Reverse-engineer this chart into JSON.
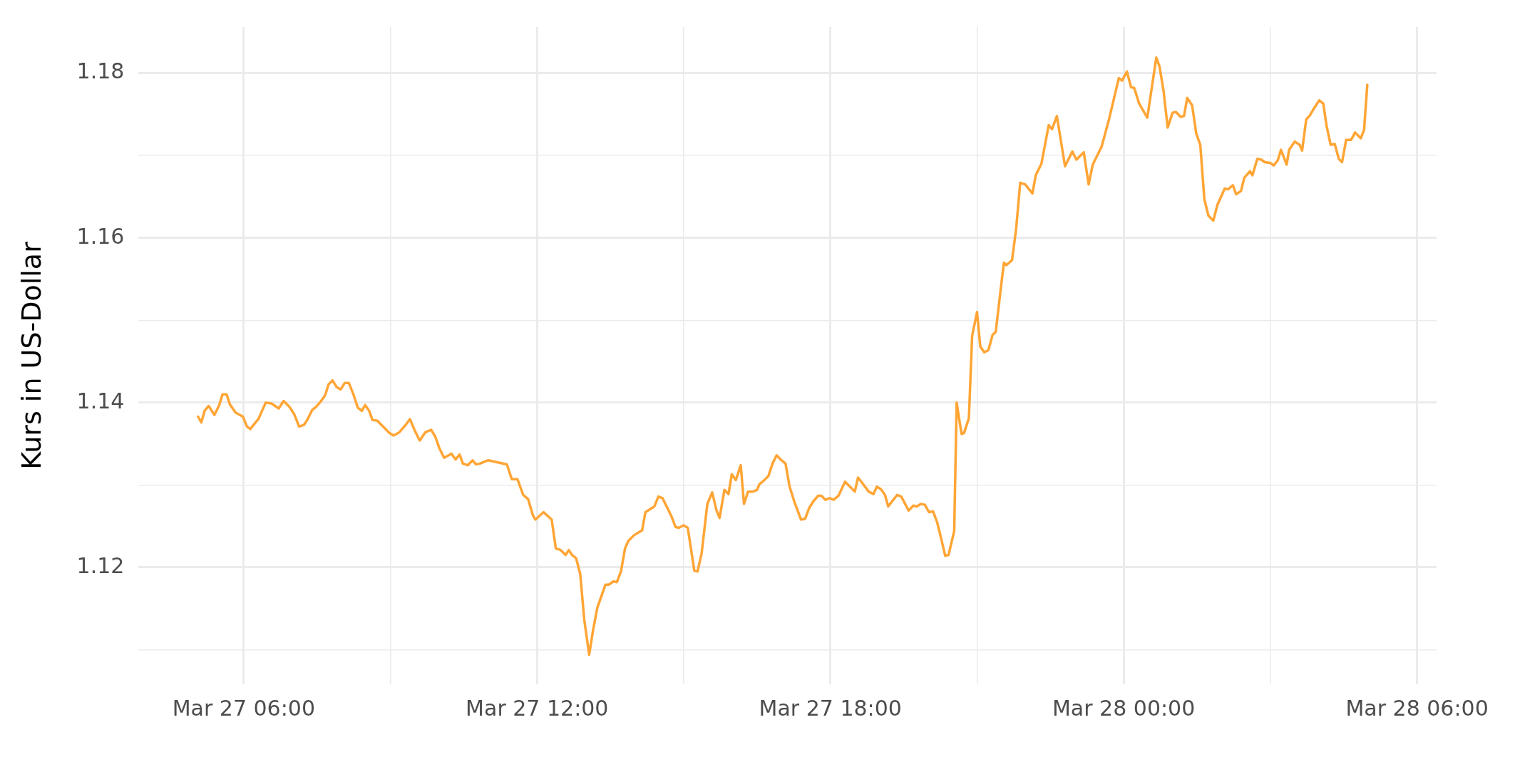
{
  "chart_data": {
    "type": "line",
    "ylabel": "Kurs in US-Dollar",
    "x": [
      "--03-27T05:04",
      "--03-27T05:08",
      "--03-27T05:12",
      "--03-27T05:17",
      "--03-27T05:24",
      "--03-27T05:30",
      "--03-27T05:34",
      "--03-27T05:39",
      "--03-27T05:43",
      "--03-27T05:50",
      "--03-27T05:59",
      "--03-27T06:04",
      "--03-27T06:08",
      "--03-27T06:18",
      "--03-27T06:27",
      "--03-27T06:34",
      "--03-27T06:43",
      "--03-27T06:49",
      "--03-27T06:56",
      "--03-27T07:02",
      "--03-27T07:08",
      "--03-27T07:14",
      "--03-27T07:18",
      "--03-27T07:24",
      "--03-27T07:29",
      "--03-27T07:35",
      "--03-27T07:40",
      "--03-27T07:44",
      "--03-27T07:49",
      "--03-27T07:54",
      "--03-27T07:59",
      "--03-27T08:04",
      "--03-27T08:09",
      "--03-27T08:15",
      "--03-27T08:20",
      "--03-27T08:25",
      "--03-27T08:29",
      "--03-27T08:34",
      "--03-27T08:38",
      "--03-27T08:44",
      "--03-27T08:52",
      "--03-27T08:59",
      "--03-27T09:04",
      "--03-27T09:11",
      "--03-27T09:18",
      "--03-27T09:24",
      "--03-27T09:30",
      "--03-27T09:36",
      "--03-27T09:43",
      "--03-27T09:50",
      "--03-27T09:55",
      "--03-27T10:00",
      "--03-27T10:06",
      "--03-27T10:15",
      "--03-27T10:20",
      "--03-27T10:25",
      "--03-27T10:29",
      "--03-27T10:35",
      "--03-27T10:41",
      "--03-27T10:45",
      "--03-27T10:50",
      "--03-27T11:00",
      "--03-27T11:23",
      "--03-27T11:29",
      "--03-27T11:36",
      "--03-27T11:43",
      "--03-27T11:49",
      "--03-27T11:55",
      "--03-27T11:58",
      "--03-27T12:08",
      "--03-27T12:18",
      "--03-27T12:23",
      "--03-27T12:29",
      "--03-27T12:35",
      "--03-27T12:39",
      "--03-27T12:43",
      "--03-27T12:48",
      "--03-27T12:53",
      "--03-27T12:58",
      "--03-27T13:04",
      "--03-27T13:09",
      "--03-27T13:14",
      "--03-27T13:24",
      "--03-27T13:28",
      "--03-27T13:34",
      "--03-27T13:38",
      "--03-27T13:43",
      "--03-27T13:48",
      "--03-27T13:52",
      "--03-27T13:59",
      "--03-27T14:09",
      "--03-27T14:13",
      "--03-27T14:24",
      "--03-27T14:29",
      "--03-27T14:34",
      "--03-27T14:45",
      "--03-27T14:50",
      "--03-27T14:54",
      "--03-27T15:00",
      "--03-27T15:05",
      "--03-27T15:13",
      "--03-27T15:17",
      "--03-27T15:22",
      "--03-27T15:29",
      "--03-27T15:35",
      "--03-27T15:40",
      "--03-27T15:44",
      "--03-27T15:50",
      "--03-27T15:55",
      "--03-27T15:59",
      "--03-27T16:04",
      "--03-27T16:10",
      "--03-27T16:14",
      "--03-27T16:19",
      "--03-27T16:25",
      "--03-27T16:30",
      "--03-27T16:33",
      "--03-27T16:38",
      "--03-27T16:44",
      "--03-27T16:49",
      "--03-27T16:54",
      "--03-27T17:00",
      "--03-27T17:05",
      "--03-27T17:10",
      "--03-27T17:16",
      "--03-27T17:24",
      "--03-27T17:29",
      "--03-27T17:34",
      "--03-27T17:39",
      "--03-27T17:45",
      "--03-27T17:49",
      "--03-27T17:54",
      "--03-27T17:59",
      "--03-27T18:04",
      "--03-27T18:10",
      "--03-27T18:18",
      "--03-27T18:30",
      "--03-27T18:34",
      "--03-27T18:38",
      "--03-27T18:47",
      "--03-27T18:53",
      "--03-27T18:57",
      "--03-27T19:02",
      "--03-27T19:07",
      "--03-27T19:11",
      "--03-27T19:22",
      "--03-27T19:27",
      "--03-27T19:36",
      "--03-27T19:42",
      "--03-27T19:46",
      "--03-27T19:51",
      "--03-27T19:56",
      "--03-27T20:01",
      "--03-27T20:06",
      "--03-27T20:11",
      "--03-27T20:15",
      "--03-27T20:21",
      "--03-27T20:25",
      "--03-27T20:32",
      "--03-27T20:35",
      "--03-27T20:41",
      "--03-27T20:44",
      "--03-27T20:50",
      "--03-27T20:54",
      "--03-27T21:00",
      "--03-27T21:04",
      "--03-27T21:09",
      "--03-27T21:14",
      "--03-27T21:19",
      "--03-27T21:23",
      "--03-27T21:29",
      "--03-27T21:33",
      "--03-27T21:36",
      "--03-27T21:43",
      "--03-27T21:48",
      "--03-27T21:53",
      "--03-27T21:59",
      "--03-27T22:08",
      "--03-27T22:12",
      "--03-27T22:19",
      "--03-27T22:28",
      "--03-27T22:32",
      "--03-27T22:38",
      "--03-27T22:48",
      "--03-27T22:57",
      "--03-27T23:02",
      "--03-27T23:11",
      "--03-27T23:17",
      "--03-27T23:22",
      "--03-27T23:33",
      "--03-27T23:42",
      "--03-27T23:54",
      "--03-27T23:58",
      "--03-28T00:04",
      "--03-28T00:09",
      "--03-28T00:13",
      "--03-28T00:19",
      "--03-28T00:29",
      "--03-28T00:40",
      "--03-28T00:44",
      "--03-28T00:49",
      "--03-28T00:54",
      "--03-28T01:00",
      "--03-28T01:04",
      "--03-28T01:10",
      "--03-28T01:14",
      "--03-28T01:18",
      "--03-28T01:24",
      "--03-28T01:29",
      "--03-28T01:34",
      "--03-28T01:39",
      "--03-28T01:44",
      "--03-28T01:50",
      "--03-28T01:55",
      "--03-28T02:04",
      "--03-28T02:08",
      "--03-28T02:14",
      "--03-28T02:18",
      "--03-28T02:24",
      "--03-28T02:28",
      "--03-28T02:35",
      "--03-28T02:38",
      "--03-28T02:44",
      "--03-28T02:49",
      "--03-28T02:53",
      "--03-28T03:00",
      "--03-28T03:04",
      "--03-28T03:09",
      "--03-28T03:13",
      "--03-28T03:20",
      "--03-28T03:23",
      "--03-28T03:30",
      "--03-28T03:36",
      "--03-28T03:39",
      "--03-28T03:44",
      "--03-28T03:48",
      "--03-28T03:54",
      "--03-28T04:00",
      "--03-28T04:05",
      "--03-28T04:09",
      "--03-28T04:14",
      "--03-28T04:19",
      "--03-28T04:24",
      "--03-28T04:28",
      "--03-28T04:33",
      "--03-28T04:39",
      "--03-28T04:44",
      "--03-28T04:51",
      "--03-28T04:55",
      "--03-28T04:59"
    ],
    "series": [
      {
        "color": "#ffa535",
        "values": [
          1.1383,
          1.1376,
          1.139,
          1.1396,
          1.1385,
          1.1397,
          1.141,
          1.141,
          1.1398,
          1.1388,
          1.1383,
          1.1371,
          1.1368,
          1.138,
          1.14,
          1.1399,
          1.1393,
          1.1402,
          1.1395,
          1.1386,
          1.1371,
          1.1373,
          1.1379,
          1.1391,
          1.1395,
          1.1402,
          1.1409,
          1.1422,
          1.1427,
          1.1419,
          1.1416,
          1.1424,
          1.1424,
          1.1409,
          1.1394,
          1.139,
          1.1397,
          1.139,
          1.1379,
          1.1378,
          1.137,
          1.1363,
          1.136,
          1.1364,
          1.1372,
          1.138,
          1.1366,
          1.1354,
          1.1364,
          1.1367,
          1.1359,
          1.1345,
          1.1333,
          1.1338,
          1.1331,
          1.1337,
          1.1326,
          1.1324,
          1.133,
          1.1325,
          1.1326,
          1.133,
          1.1325,
          1.1307,
          1.1307,
          1.1288,
          1.1283,
          1.1263,
          1.1258,
          1.1267,
          1.1258,
          1.1223,
          1.1221,
          1.1215,
          1.1221,
          1.1215,
          1.1211,
          1.1192,
          1.1136,
          1.1094,
          1.1125,
          1.1151,
          1.1179,
          1.1179,
          1.1183,
          1.1182,
          1.1195,
          1.1223,
          1.1232,
          1.1239,
          1.1245,
          1.1267,
          1.1274,
          1.1286,
          1.1284,
          1.1262,
          1.1249,
          1.1248,
          1.1251,
          1.1248,
          1.1196,
          1.1195,
          1.1217,
          1.1277,
          1.1291,
          1.127,
          1.126,
          1.1294,
          1.1289,
          1.1313,
          1.1306,
          1.1324,
          1.1277,
          1.1292,
          1.1292,
          1.1294,
          1.1301,
          1.1305,
          1.1311,
          1.1326,
          1.1336,
          1.133,
          1.1326,
          1.1298,
          1.1279,
          1.1258,
          1.1259,
          1.1272,
          1.128,
          1.1287,
          1.1287,
          1.1282,
          1.1284,
          1.1282,
          1.1287,
          1.1304,
          1.1292,
          1.1309,
          1.1304,
          1.1292,
          1.1289,
          1.1298,
          1.1295,
          1.1288,
          1.1274,
          1.1288,
          1.1286,
          1.1269,
          1.1275,
          1.1274,
          1.1277,
          1.1276,
          1.1267,
          1.1268,
          1.1255,
          1.1239,
          1.1214,
          1.1215,
          1.1244,
          1.14,
          1.1362,
          1.1363,
          1.1381,
          1.1481,
          1.151,
          1.1468,
          1.1461,
          1.1464,
          1.1482,
          1.1486,
          1.1537,
          1.157,
          1.1567,
          1.1573,
          1.1611,
          1.1667,
          1.1665,
          1.1654,
          1.1676,
          1.169,
          1.1737,
          1.1732,
          1.1748,
          1.1687,
          1.1705,
          1.1695,
          1.1704,
          1.1665,
          1.1689,
          1.1711,
          1.1744,
          1.1794,
          1.1791,
          1.1802,
          1.1783,
          1.1782,
          1.1763,
          1.1746,
          1.1819,
          1.1808,
          1.1778,
          1.1734,
          1.1752,
          1.1753,
          1.1747,
          1.1748,
          1.177,
          1.1761,
          1.1727,
          1.1713,
          1.1647,
          1.1627,
          1.1621,
          1.164,
          1.166,
          1.1659,
          1.1664,
          1.1653,
          1.1657,
          1.1673,
          1.1681,
          1.1676,
          1.1696,
          1.1695,
          1.1692,
          1.1691,
          1.1688,
          1.1694,
          1.1707,
          1.1689,
          1.1707,
          1.1717,
          1.1713,
          1.1706,
          1.1744,
          1.1748,
          1.1758,
          1.1767,
          1.1763,
          1.1736,
          1.1713,
          1.1714,
          1.1696,
          1.1692,
          1.1719,
          1.1719,
          1.1728,
          1.1721,
          1.1731,
          1.1786
        ]
      }
    ],
    "xlim": [
      "--03-27T03:51",
      "--03-28T06:24"
    ],
    "xticks": [
      {
        "value": "--03-27T06:00",
        "label": "Mar 27 06:00"
      },
      {
        "value": "--03-27T09:00",
        "label": null
      },
      {
        "value": "--03-27T12:00",
        "label": "Mar 27 12:00"
      },
      {
        "value": "--03-27T15:00",
        "label": null
      },
      {
        "value": "--03-27T18:00",
        "label": "Mar 27 18:00"
      },
      {
        "value": "--03-27T21:00",
        "label": null
      },
      {
        "value": "--03-28T00:00",
        "label": "Mar 28 00:00"
      },
      {
        "value": "--03-28T03:00",
        "label": null
      },
      {
        "value": "--03-28T06:00",
        "label": "Mar 28 06:00"
      }
    ],
    "ylim": [
      1.1058,
      1.1856
    ],
    "yticks": [
      {
        "value": 1.11,
        "label": null
      },
      {
        "value": 1.12,
        "label": "1.12"
      },
      {
        "value": 1.13,
        "label": null
      },
      {
        "value": 1.14,
        "label": "1.14"
      },
      {
        "value": 1.15,
        "label": null
      },
      {
        "value": 1.16,
        "label": "1.16"
      },
      {
        "value": 1.17,
        "label": null
      },
      {
        "value": 1.18,
        "label": "1.18"
      }
    ],
    "grid": true,
    "legend": false,
    "marker": "none",
    "line_style": "solid"
  }
}
